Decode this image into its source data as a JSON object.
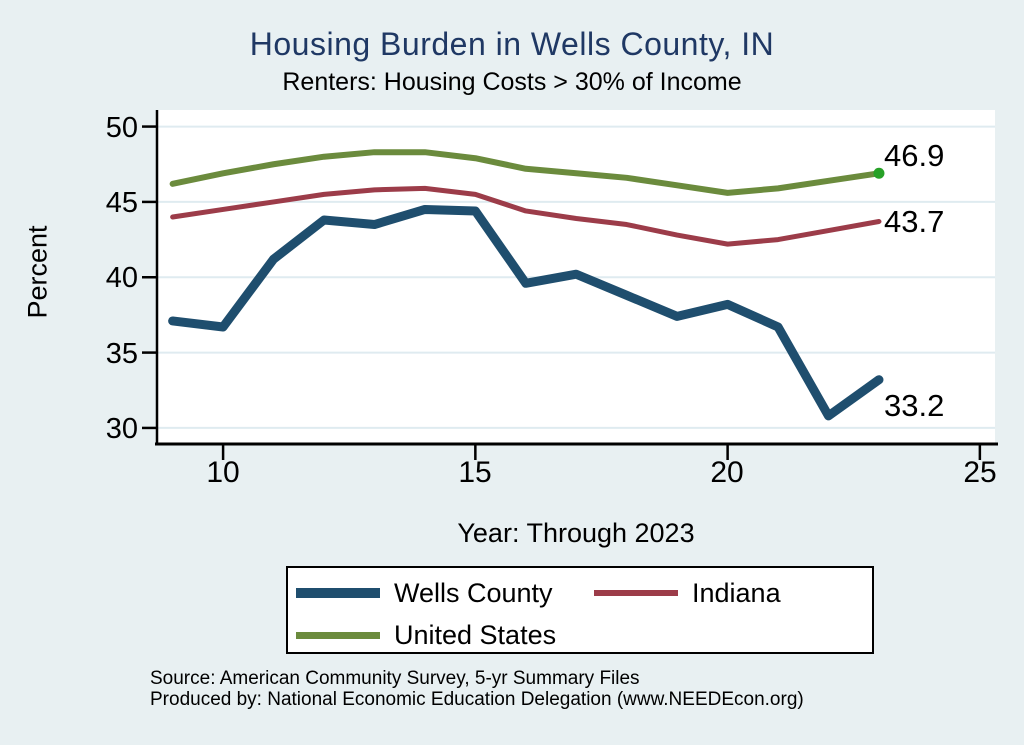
{
  "title": "Housing Burden in Wells County, IN",
  "subtitle": "Renters: Housing Costs > 30% of Income",
  "colors": {
    "background": "#e8f0f2",
    "plot_background": "#ffffff",
    "gridline": "#dfebf0",
    "axis": "#000000",
    "title_text": "#1f3864",
    "wells_county_line": "#1f4e6e",
    "indiana_line": "#9c3c49",
    "united_states_line": "#6b8b3d",
    "us_end_marker": "#27a127"
  },
  "chart_data": {
    "type": "line",
    "x": [
      9,
      10,
      11,
      12,
      13,
      14,
      15,
      16,
      17,
      18,
      19,
      20,
      21,
      22,
      23
    ],
    "series": [
      {
        "name": "Wells County",
        "color": "#1f4e6e",
        "values": [
          37.1,
          36.7,
          41.2,
          43.8,
          43.5,
          44.5,
          44.4,
          39.6,
          40.2,
          38.8,
          37.4,
          38.2,
          36.7,
          30.8,
          33.2
        ],
        "end_label": "33.2"
      },
      {
        "name": "Indiana",
        "color": "#9c3c49",
        "values": [
          44.0,
          44.5,
          45.0,
          45.5,
          45.8,
          45.9,
          45.5,
          44.4,
          43.9,
          43.5,
          42.8,
          42.2,
          42.5,
          43.1,
          43.7
        ],
        "end_label": "43.7"
      },
      {
        "name": "United States",
        "color": "#6b8b3d",
        "values": [
          46.2,
          46.9,
          47.5,
          48.0,
          48.3,
          48.3,
          47.9,
          47.2,
          46.9,
          46.6,
          46.1,
          45.6,
          45.9,
          46.4,
          46.9
        ],
        "end_label": "46.9",
        "end_marker_color": "#27a127"
      }
    ],
    "title": "Housing Burden in Wells County, IN",
    "subtitle": "Renters: Housing Costs > 30% of Income",
    "xlabel": "Year: Through 2023",
    "ylabel": "Percent",
    "x_ticks": [
      10,
      15,
      20,
      25
    ],
    "y_ticks": [
      50,
      45,
      40,
      35,
      30
    ],
    "xlim": [
      8.69,
      25.3
    ],
    "ylim": [
      29.0,
      51.1
    ],
    "grid": "horizontal",
    "legend_position": "bottom-center"
  },
  "footer": {
    "source": "Source: American Community Survey, 5-yr Summary Files",
    "produced_by": "Produced by: National Economic Education Delegation (www.NEEDEcon.org)"
  }
}
